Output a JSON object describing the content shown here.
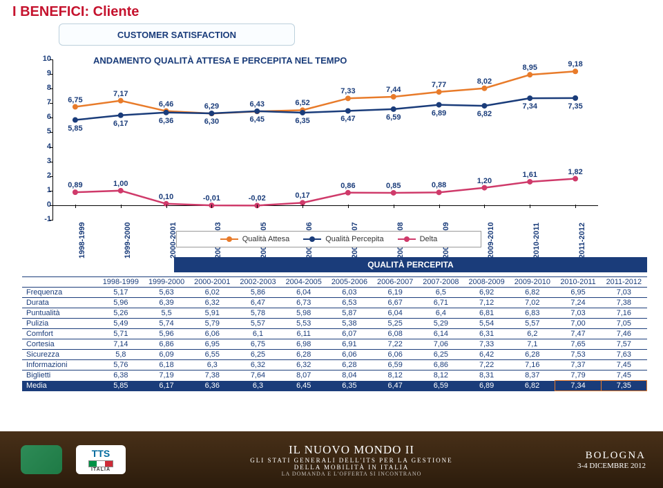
{
  "title": {
    "text": "I BENEFICI: Cliente",
    "color": "#c5132e",
    "fontsize": 20
  },
  "subtitle": {
    "text": "CUSTOMER SATISFACTION",
    "color": "#1a3c7a",
    "fontsize": 13
  },
  "chart": {
    "title": {
      "text": "ANDAMENTO QUALITÀ ATTESA E PERCEPITA NEL TEMPO",
      "color": "#1a3c7a",
      "fontsize": 13
    },
    "y": {
      "min": -1,
      "max": 10,
      "step": 1,
      "tick_fontsize": 11,
      "tick_color": "#1a3c7a"
    },
    "categories": [
      "1998-1999",
      "1999-2000",
      "2000-2001",
      "2002-2003",
      "2004-2005",
      "2005-2006",
      "2006-2007",
      "2007-2008",
      "2008-2009",
      "2009-2010",
      "2010-2011",
      "2011-2012"
    ],
    "cat_fontsize": 11,
    "cat_color": "#1a3c7a",
    "label_fontsize": 11,
    "label_color": "#1a3c7a",
    "series": [
      {
        "name": "Qualità Attesa",
        "color": "#e87b2a",
        "values": [
          6.75,
          7.17,
          6.46,
          6.29,
          6.43,
          6.52,
          7.33,
          7.44,
          7.77,
          8.02,
          8.95,
          9.18
        ],
        "labels": [
          "6,75",
          "7,17",
          "6,46",
          "6,29",
          "6,43",
          "6,52",
          "7,33",
          "7,44",
          "7,77",
          "8,02",
          "8,95",
          "9,18"
        ],
        "label_pos": "above"
      },
      {
        "name": "Qualità Percepita",
        "color": "#1a3c7a",
        "values": [
          5.85,
          6.17,
          6.36,
          6.3,
          6.45,
          6.35,
          6.47,
          6.59,
          6.89,
          6.82,
          7.34,
          7.35
        ],
        "labels": [
          "5,85",
          "6,17",
          "6,36",
          "6,30",
          "6,45",
          "6,35",
          "6,47",
          "6,59",
          "6,89",
          "6,82",
          "7,34",
          "7,35"
        ],
        "label_pos": "below"
      },
      {
        "name": "Delta",
        "color": "#cf3a6a",
        "values": [
          0.89,
          1.0,
          0.1,
          -0.01,
          -0.02,
          0.17,
          0.86,
          0.85,
          0.88,
          1.2,
          1.61,
          1.82
        ],
        "labels": [
          "0,89",
          "1,00",
          "0,10",
          "-0,01",
          "-0,02",
          "0,17",
          "0,86",
          "0,85",
          "0,88",
          "1,20",
          "1,61",
          "1,82"
        ],
        "label_pos": "above"
      }
    ],
    "line_width": 2.5,
    "marker_radius": 4
  },
  "legend": {
    "fontsize": 11,
    "text_color": "#333"
  },
  "table": {
    "title_band": {
      "text": "QUALITÀ PERCEPITA",
      "bg": "#1a3c7a",
      "color": "#ffffff",
      "fontsize": 12
    },
    "header_fontsize": 8.2,
    "header_color": "#1a3c7a",
    "cell_fontsize": 8.2,
    "cell_color": "#1a3c7a",
    "border_color": "#1a3c7a",
    "columns": [
      "",
      "1998-1999",
      "1999-2000",
      "2000-2001",
      "2002-2003",
      "2004-2005",
      "2005-2006",
      "2006-2007",
      "2007-2008",
      "2008-2009",
      "2009-2010",
      "2010-2011",
      "2011-2012"
    ],
    "rows": [
      {
        "label": "Frequenza",
        "values": [
          "5,17",
          "5,63",
          "6,02",
          "5,86",
          "6,04",
          "6,03",
          "6,19",
          "6,5",
          "6,92",
          "6,82",
          "6,95",
          "7,03"
        ],
        "bordered": false
      },
      {
        "label": "Durata",
        "values": [
          "5,96",
          "6,39",
          "6,32",
          "6,47",
          "6,73",
          "6,53",
          "6,67",
          "6,71",
          "7,12",
          "7,02",
          "7,24",
          "7,38"
        ],
        "bordered": true
      },
      {
        "label": "Puntualità",
        "values": [
          "5,26",
          "5,5",
          "5,91",
          "5,78",
          "5,98",
          "5,87",
          "6,04",
          "6,4",
          "6,81",
          "6,83",
          "7,03",
          "7,16"
        ],
        "bordered": false
      },
      {
        "label": "Pulizia",
        "values": [
          "5,49",
          "5,74",
          "5,79",
          "5,57",
          "5,53",
          "5,38",
          "5,25",
          "5,29",
          "5,54",
          "5,57",
          "7,00",
          "7,05"
        ],
        "bordered": true
      },
      {
        "label": "Comfort",
        "values": [
          "5,71",
          "5,96",
          "6,06",
          "6,1",
          "6,11",
          "6,07",
          "6,08",
          "6,14",
          "6,31",
          "6,2",
          "7,47",
          "7,46"
        ],
        "bordered": false
      },
      {
        "label": "Cortesia",
        "values": [
          "7,14",
          "6,86",
          "6,95",
          "6,75",
          "6,98",
          "6,91",
          "7,22",
          "7,06",
          "7,33",
          "7,1",
          "7,65",
          "7,57"
        ],
        "bordered": true
      },
      {
        "label": "Sicurezza",
        "values": [
          "5,8",
          "6,09",
          "6,55",
          "6,25",
          "6,28",
          "6,06",
          "6,06",
          "6,25",
          "6,42",
          "6,28",
          "7,53",
          "7,63"
        ],
        "bordered": false
      },
      {
        "label": "Informazioni",
        "values": [
          "5,76",
          "6,18",
          "6,3",
          "6,32",
          "6,32",
          "6,28",
          "6,59",
          "6,86",
          "7,22",
          "7,16",
          "7,37",
          "7,45"
        ],
        "bordered": true
      },
      {
        "label": "Biglietti",
        "values": [
          "6,38",
          "7,19",
          "7,38",
          "7,64",
          "8,07",
          "8,04",
          "8,12",
          "8,12",
          "8,31",
          "8,37",
          "7,79",
          "7,45"
        ],
        "bordered": false
      }
    ],
    "media_row": {
      "label": "Media",
      "bg": "#1a3c7a",
      "color": "#ffffff",
      "values": [
        "5,85",
        "6,17",
        "6,36",
        "6,3",
        "6,45",
        "6,35",
        "6,47",
        "6,59",
        "6,89",
        "6,82",
        "7,34",
        "7,35"
      ]
    }
  },
  "footer": {
    "center_l1": "IL NUOVO MONDO II",
    "center_l1_size": 17,
    "center_l2": "GLI STATI GENERALI DELL'ITS PER LA GESTIONE",
    "center_l2_size": 9,
    "center_l3": "DELLA MOBILITÀ IN ITALIA",
    "center_l3_size": 9,
    "center_l4": "LA DOMANDA E L'OFFERTA SI INCONTRANO",
    "center_l4_size": 8,
    "center_l4_opacity": 0.7,
    "city": "BOLOGNA",
    "city_size": 15,
    "date": "3-4 DICEMBRE 2012",
    "date_size": 11,
    "tts_text": "TTS",
    "tts_sub": "ITALIA",
    "flag": [
      "#009246",
      "#ffffff",
      "#ce2b37"
    ]
  }
}
